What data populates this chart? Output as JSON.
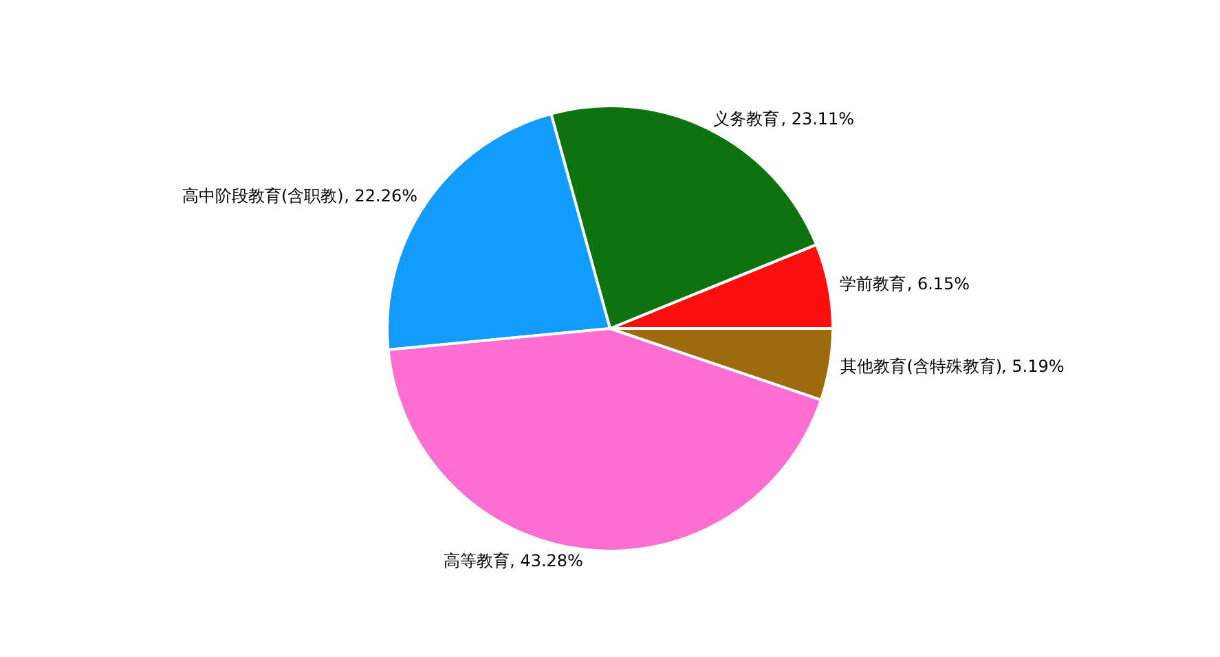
{
  "chart_data": {
    "type": "pie",
    "categories": [
      "学前教育",
      "义务教育",
      "高中阶段教育(含职教)",
      "高等教育",
      "其他教育(含特殊教育)"
    ],
    "values": [
      6.15,
      23.11,
      22.26,
      43.28,
      5.19
    ],
    "colors": [
      "#fe0f0f",
      "#0e730e",
      "#129cff",
      "#ff6ed3",
      "#9e6a0e"
    ],
    "value_labels": [
      ", 6.15%",
      ", 23.11%",
      ", 22.26%",
      ", 43.28%",
      ", 5.19%"
    ]
  }
}
